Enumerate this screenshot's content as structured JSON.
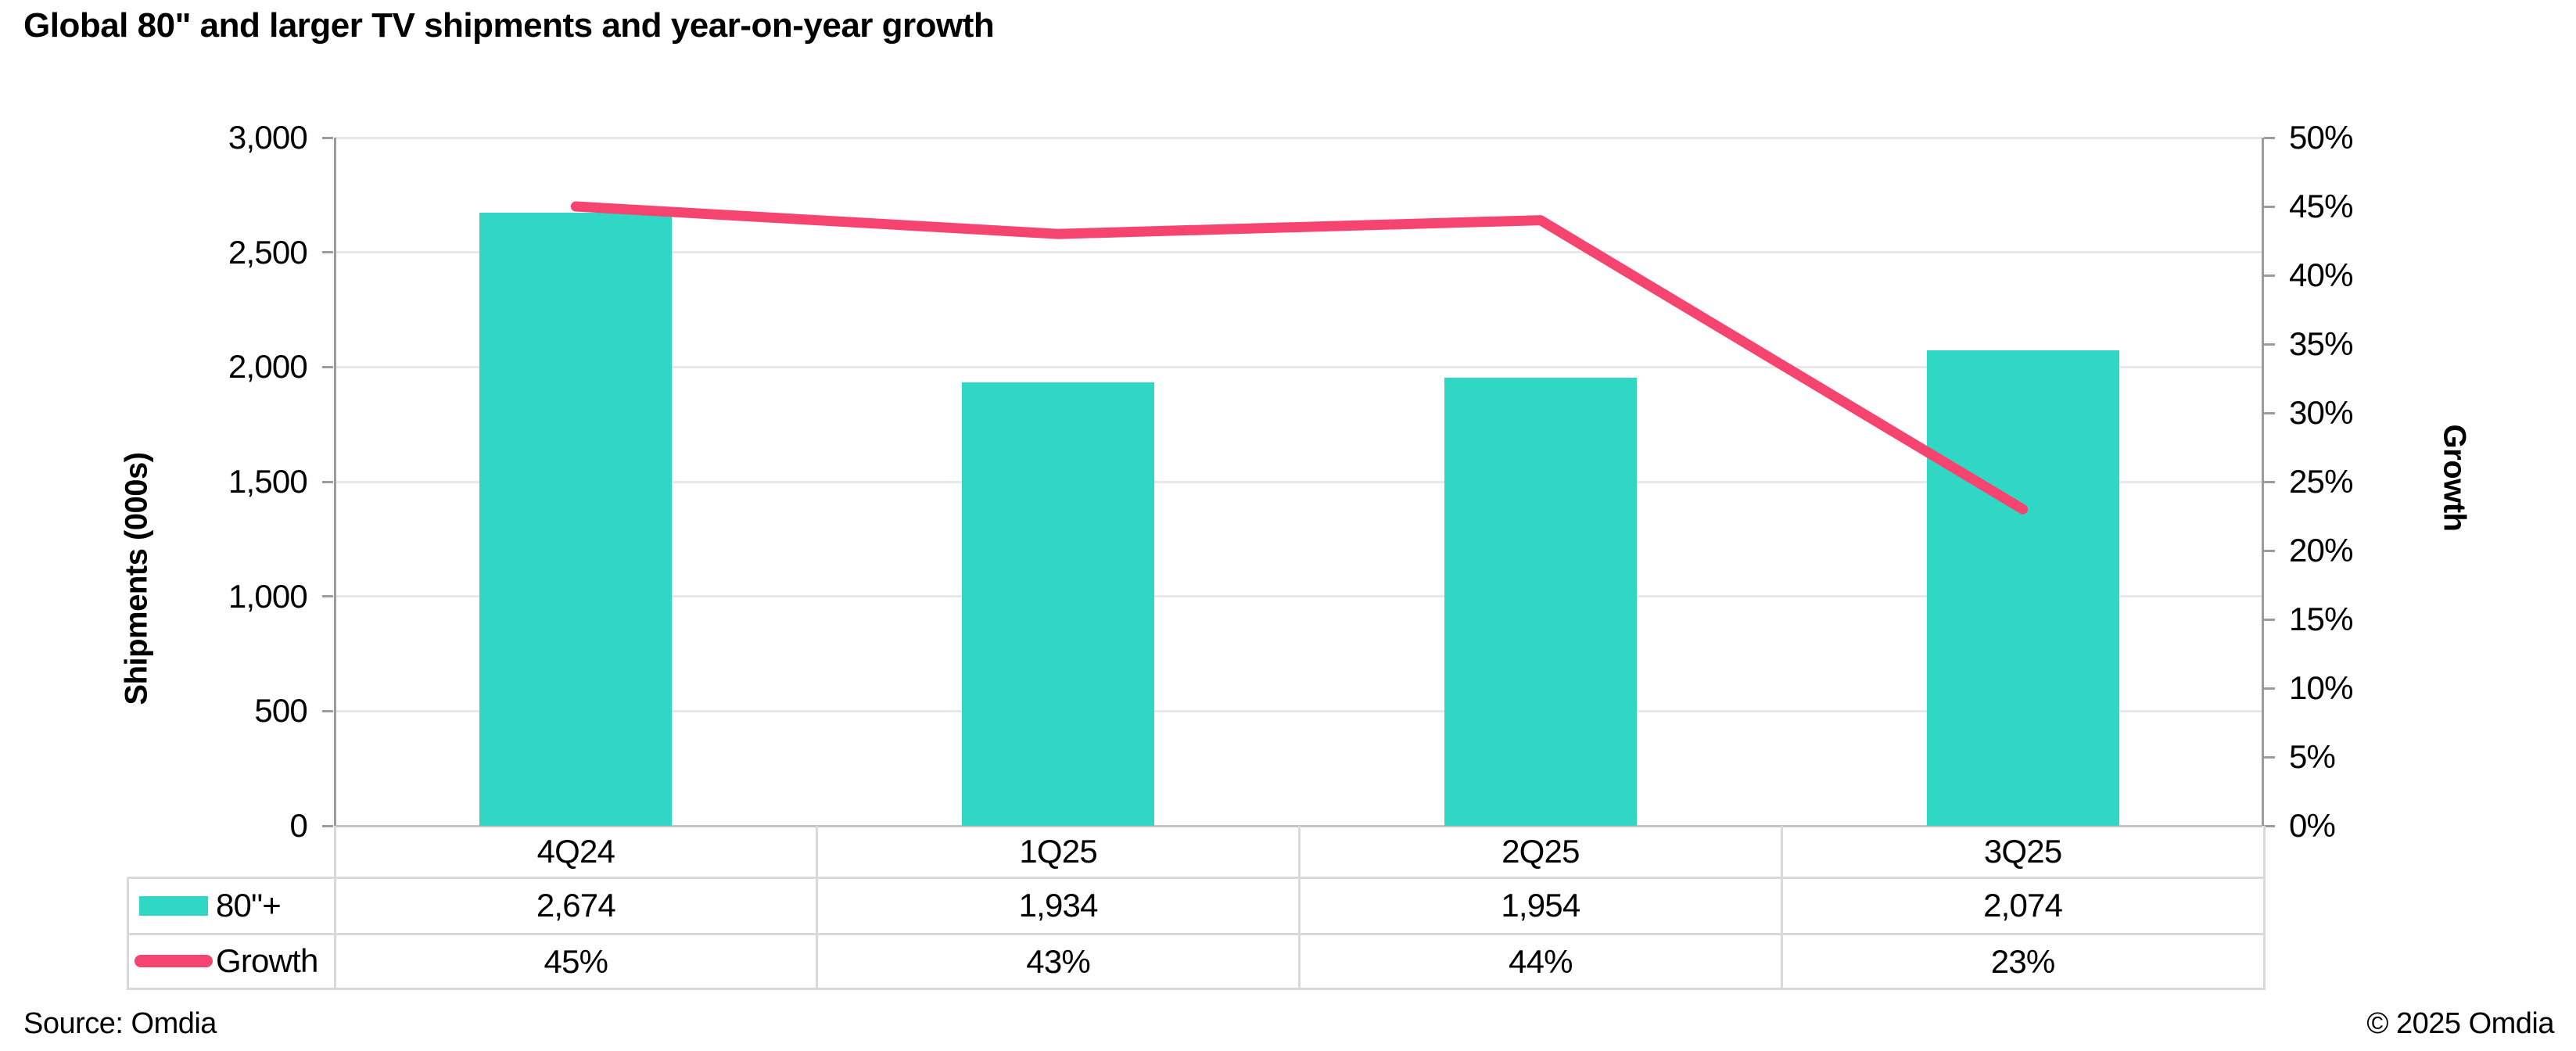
{
  "title": "Global 80\" and larger TV shipments and year-on-year growth",
  "footer": {
    "source": "Source: Omdia",
    "copyright": "© 2025 Omdia"
  },
  "colors": {
    "bar": "#31D7C5",
    "line": "#F5446F",
    "gridline": "#E8E8E8",
    "axis": "#9C9C9C",
    "category_axis": "#C4C4C4",
    "table_border": "#D9D9D9",
    "text": "#000000"
  },
  "chart_data": {
    "type": "combo-bar-line",
    "title": "Global 80\" and larger TV shipments and year-on-year growth",
    "categories": [
      "4Q24",
      "1Q25",
      "2Q25",
      "3Q25"
    ],
    "series": [
      {
        "name": "80\"+",
        "type": "bar",
        "axis": "left",
        "values": [
          2674,
          1934,
          1954,
          2074
        ],
        "labels": [
          "2,674",
          "1,934",
          "1,954",
          "2,074"
        ],
        "color": "#31D7C5"
      },
      {
        "name": "Growth",
        "type": "line",
        "axis": "right",
        "values": [
          45,
          43,
          44,
          23
        ],
        "labels": [
          "45%",
          "43%",
          "44%",
          "23%"
        ],
        "color": "#F5446F"
      }
    ],
    "left_axis": {
      "title": "Shipments (000s)",
      "min": 0,
      "max": 3000,
      "step": 500,
      "tick_labels": [
        "0",
        "500",
        "1,000",
        "1,500",
        "2,000",
        "2,500",
        "3,000"
      ]
    },
    "right_axis": {
      "title": "Growth",
      "min": 0,
      "max": 50,
      "step": 5,
      "tick_labels": [
        "0%",
        "5%",
        "10%",
        "15%",
        "20%",
        "25%",
        "30%",
        "35%",
        "40%",
        "45%",
        "50%"
      ]
    },
    "grid": true,
    "legend_position": "data-table-left"
  }
}
